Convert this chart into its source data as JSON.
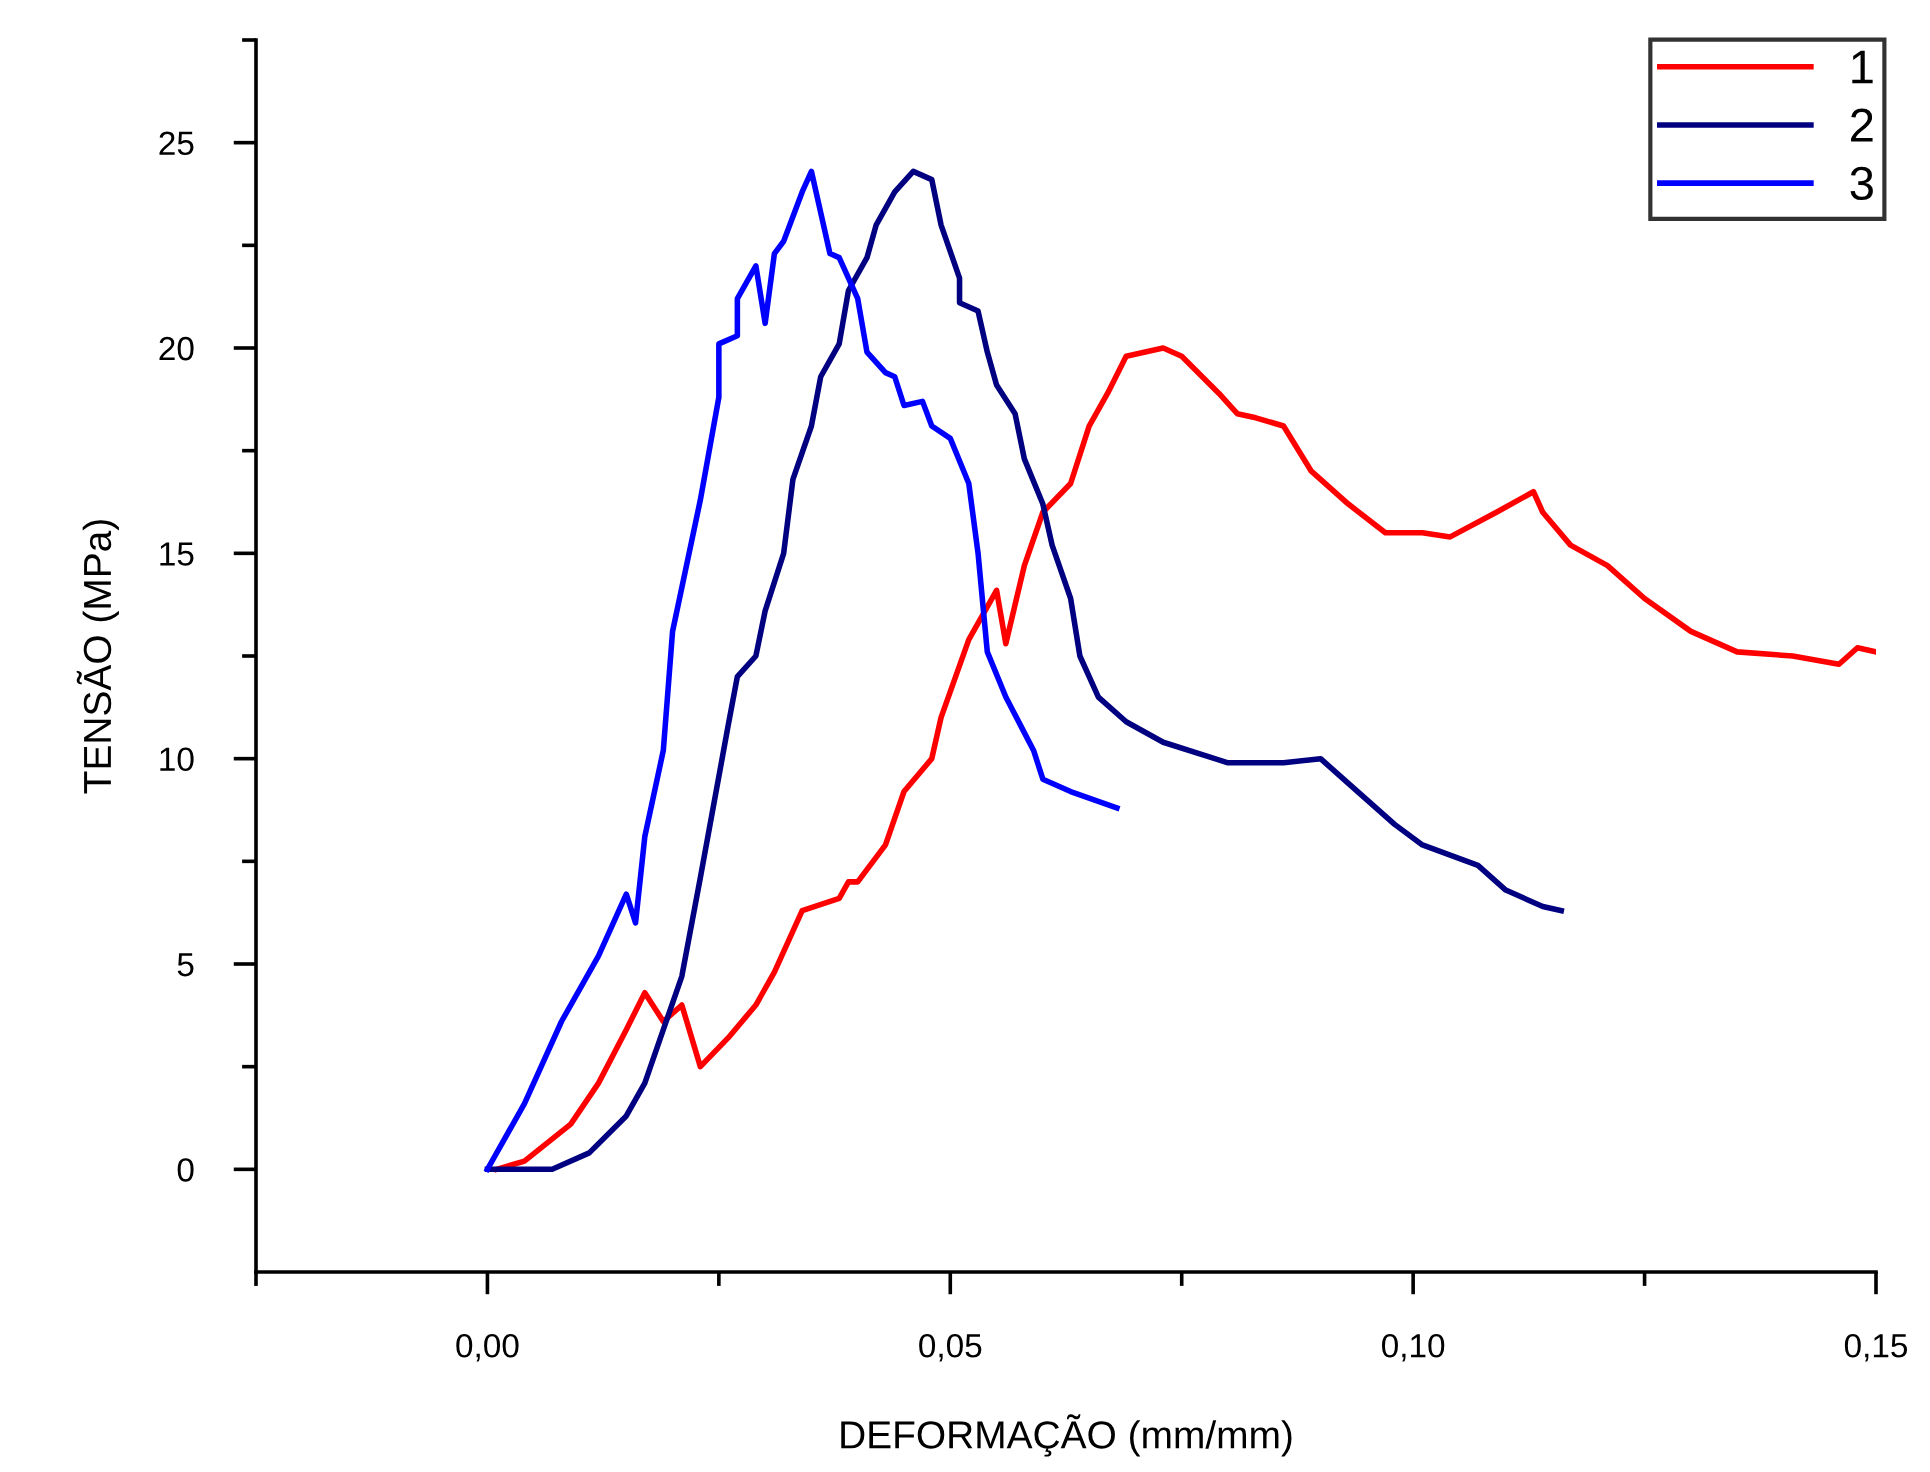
{
  "chart_data": {
    "type": "line",
    "xlabel": "DEFORMAÇÃO (mm/mm)",
    "ylabel": "TENSÃO (MPa)",
    "xlim": [
      -0.025,
      0.15
    ],
    "ylim": [
      -2.5,
      27.5
    ],
    "xticks": [
      {
        "value": -0.025,
        "label": null
      },
      {
        "value": 0,
        "label": "0,00"
      },
      {
        "value": 0.025,
        "label": null
      },
      {
        "value": 0.05,
        "label": "0,05"
      },
      {
        "value": 0.075,
        "label": null
      },
      {
        "value": 0.1,
        "label": "0,10"
      },
      {
        "value": 0.125,
        "label": null
      },
      {
        "value": 0.15,
        "label": "0,15"
      }
    ],
    "yticks": [
      0,
      {
        "value": 2.5,
        "label": null
      },
      5,
      {
        "value": 7.5,
        "label": null
      },
      10,
      {
        "value": 12.5,
        "label": null
      },
      15,
      {
        "value": 17.5,
        "label": null
      },
      20,
      {
        "value": 22.5,
        "label": null
      },
      25,
      {
        "value": 27.5,
        "label": null
      }
    ],
    "grid": false,
    "legend": "top right",
    "marker": "none",
    "line_style": "solid",
    "series": [
      {
        "name": "1",
        "color": "#ff0000",
        "x": [
          0.001,
          0.004,
          0.009,
          0.012,
          0.015,
          0.017,
          0.019,
          0.021,
          0.023,
          0.026,
          0.029,
          0.031,
          0.034,
          0.038,
          0.039,
          0.04,
          0.043,
          0.045,
          0.048,
          0.049,
          0.052,
          0.055,
          0.056,
          0.058,
          0.06,
          0.063,
          0.065,
          0.067,
          0.069,
          0.073,
          0.075,
          0.079,
          0.081,
          0.083,
          0.086,
          0.089,
          0.093,
          0.097,
          0.101,
          0.104,
          0.109,
          0.113,
          0.114,
          0.117,
          0.121,
          0.125,
          0.13,
          0.135,
          0.141,
          0.146,
          0.148,
          0.15
        ],
        "values": [
          0.0,
          0.2,
          1.1,
          2.1,
          3.4,
          4.3,
          3.6,
          4.0,
          2.5,
          3.2,
          4.0,
          4.8,
          6.3,
          6.6,
          7.0,
          7.0,
          7.9,
          9.2,
          10.0,
          11.0,
          12.9,
          14.1,
          12.8,
          14.7,
          16.0,
          16.7,
          18.1,
          18.9,
          19.8,
          20.0,
          19.8,
          18.9,
          18.4,
          18.3,
          18.1,
          17.0,
          16.2,
          15.5,
          15.5,
          15.4,
          16.0,
          16.5,
          16.0,
          15.2,
          14.7,
          13.9,
          13.1,
          12.6,
          12.5,
          12.3,
          12.7,
          12.6
        ]
      },
      {
        "name": "2",
        "color": "#000080",
        "x": [
          0.0,
          0.007,
          0.011,
          0.015,
          0.017,
          0.019,
          0.021,
          0.023,
          0.026,
          0.027,
          0.029,
          0.03,
          0.032,
          0.033,
          0.035,
          0.036,
          0.038,
          0.039,
          0.041,
          0.042,
          0.044,
          0.046,
          0.048,
          0.049,
          0.051,
          0.051,
          0.053,
          0.054,
          0.055,
          0.057,
          0.058,
          0.06,
          0.061,
          0.063,
          0.064,
          0.066,
          0.069,
          0.073,
          0.08,
          0.086,
          0.09,
          0.093,
          0.098,
          0.101,
          0.107,
          0.11,
          0.114,
          0.116
        ],
        "values": [
          0.0,
          0.0,
          0.4,
          1.3,
          2.1,
          3.4,
          4.7,
          7.1,
          10.8,
          12.0,
          12.5,
          13.6,
          15.0,
          16.8,
          18.1,
          19.3,
          20.1,
          21.4,
          22.2,
          23.0,
          23.8,
          24.3,
          24.1,
          23.0,
          21.7,
          21.1,
          20.9,
          19.9,
          19.1,
          18.4,
          17.3,
          16.2,
          15.2,
          13.9,
          12.5,
          11.5,
          10.9,
          10.4,
          9.9,
          9.9,
          10.0,
          9.4,
          8.4,
          7.9,
          7.4,
          6.8,
          6.4,
          6.3
        ]
      },
      {
        "name": "3",
        "color": "#0000ff",
        "x": [
          0.0,
          0.004,
          0.008,
          0.012,
          0.015,
          0.016,
          0.017,
          0.019,
          0.02,
          0.023,
          0.025,
          0.025,
          0.027,
          0.027,
          0.029,
          0.03,
          0.031,
          0.032,
          0.034,
          0.035,
          0.037,
          0.038,
          0.04,
          0.041,
          0.043,
          0.044,
          0.045,
          0.047,
          0.048,
          0.05,
          0.052,
          0.053,
          0.054,
          0.056,
          0.059,
          0.06,
          0.063,
          0.068
        ],
        "values": [
          0.0,
          1.6,
          3.6,
          5.2,
          6.7,
          6.0,
          8.1,
          10.2,
          13.1,
          16.3,
          18.8,
          20.1,
          20.3,
          21.2,
          22.0,
          20.6,
          22.3,
          22.6,
          23.8,
          24.3,
          22.3,
          22.2,
          21.2,
          19.9,
          19.4,
          19.3,
          18.6,
          18.7,
          18.1,
          17.8,
          16.7,
          15.0,
          12.6,
          11.5,
          10.2,
          9.5,
          9.2,
          8.8
        ]
      }
    ]
  }
}
